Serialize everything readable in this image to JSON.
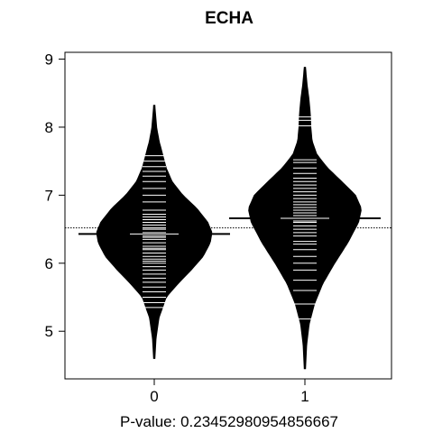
{
  "chart_data": {
    "type": "beanplot",
    "title": "ECHA",
    "xlabel": "P-value: 0.23452980954856667",
    "ylabel": "",
    "categories": [
      "0",
      "1"
    ],
    "yticks": [
      5,
      6,
      7,
      8,
      9
    ],
    "ylim": [
      4.3,
      9.1
    ],
    "overall_mean": 6.52,
    "groups": [
      {
        "name": "0",
        "mean": 6.43,
        "range": [
          4.6,
          8.32
        ],
        "density": [
          [
            4.6,
            0.01
          ],
          [
            4.9,
            0.03
          ],
          [
            5.2,
            0.08
          ],
          [
            5.5,
            0.2
          ],
          [
            5.7,
            0.4
          ],
          [
            5.9,
            0.62
          ],
          [
            6.1,
            0.82
          ],
          [
            6.3,
            0.94
          ],
          [
            6.45,
            0.97
          ],
          [
            6.6,
            0.9
          ],
          [
            6.8,
            0.72
          ],
          [
            7.0,
            0.48
          ],
          [
            7.2,
            0.3
          ],
          [
            7.4,
            0.2
          ],
          [
            7.6,
            0.14
          ],
          [
            7.8,
            0.08
          ],
          [
            8.0,
            0.04
          ],
          [
            8.32,
            0.01
          ]
        ],
        "observations": [
          5.35,
          5.42,
          5.5,
          5.58,
          5.65,
          5.72,
          5.78,
          5.84,
          5.9,
          5.95,
          6.0,
          6.03,
          6.06,
          6.1,
          6.15,
          6.2,
          6.22,
          6.25,
          6.3,
          6.35,
          6.38,
          6.4,
          6.45,
          6.5,
          6.52,
          6.56,
          6.6,
          6.64,
          6.68,
          6.72,
          6.78,
          6.9,
          7.0,
          7.1,
          7.2,
          7.28,
          7.35,
          7.42,
          7.5,
          7.58
        ]
      },
      {
        "name": "1",
        "mean": 6.66,
        "range": [
          4.45,
          8.88
        ],
        "density": [
          [
            4.45,
            0.01
          ],
          [
            4.8,
            0.03
          ],
          [
            5.1,
            0.07
          ],
          [
            5.4,
            0.16
          ],
          [
            5.7,
            0.3
          ],
          [
            6.0,
            0.5
          ],
          [
            6.3,
            0.72
          ],
          [
            6.6,
            0.9
          ],
          [
            6.8,
            0.95
          ],
          [
            7.0,
            0.85
          ],
          [
            7.2,
            0.62
          ],
          [
            7.4,
            0.38
          ],
          [
            7.6,
            0.2
          ],
          [
            7.8,
            0.12
          ],
          [
            8.0,
            0.1
          ],
          [
            8.2,
            0.09
          ],
          [
            8.4,
            0.07
          ],
          [
            8.6,
            0.04
          ],
          [
            8.88,
            0.01
          ]
        ],
        "observations": [
          5.18,
          5.4,
          5.6,
          5.75,
          5.9,
          6.0,
          6.1,
          6.2,
          6.28,
          6.32,
          6.4,
          6.45,
          6.5,
          6.55,
          6.6,
          6.62,
          6.66,
          6.7,
          6.74,
          6.78,
          6.82,
          6.86,
          6.9,
          6.95,
          7.0,
          7.05,
          7.1,
          7.15,
          7.2,
          7.25,
          7.32,
          7.4,
          7.48,
          7.52,
          8.02,
          8.1,
          8.15
        ]
      }
    ],
    "colors": {
      "bean_fill": "#000000",
      "observation_line": "#ffffff",
      "mean_line": "#000000",
      "overall_mean_line": "#000000",
      "axis": "#000000",
      "text": "#000000",
      "background": "#ffffff"
    }
  }
}
